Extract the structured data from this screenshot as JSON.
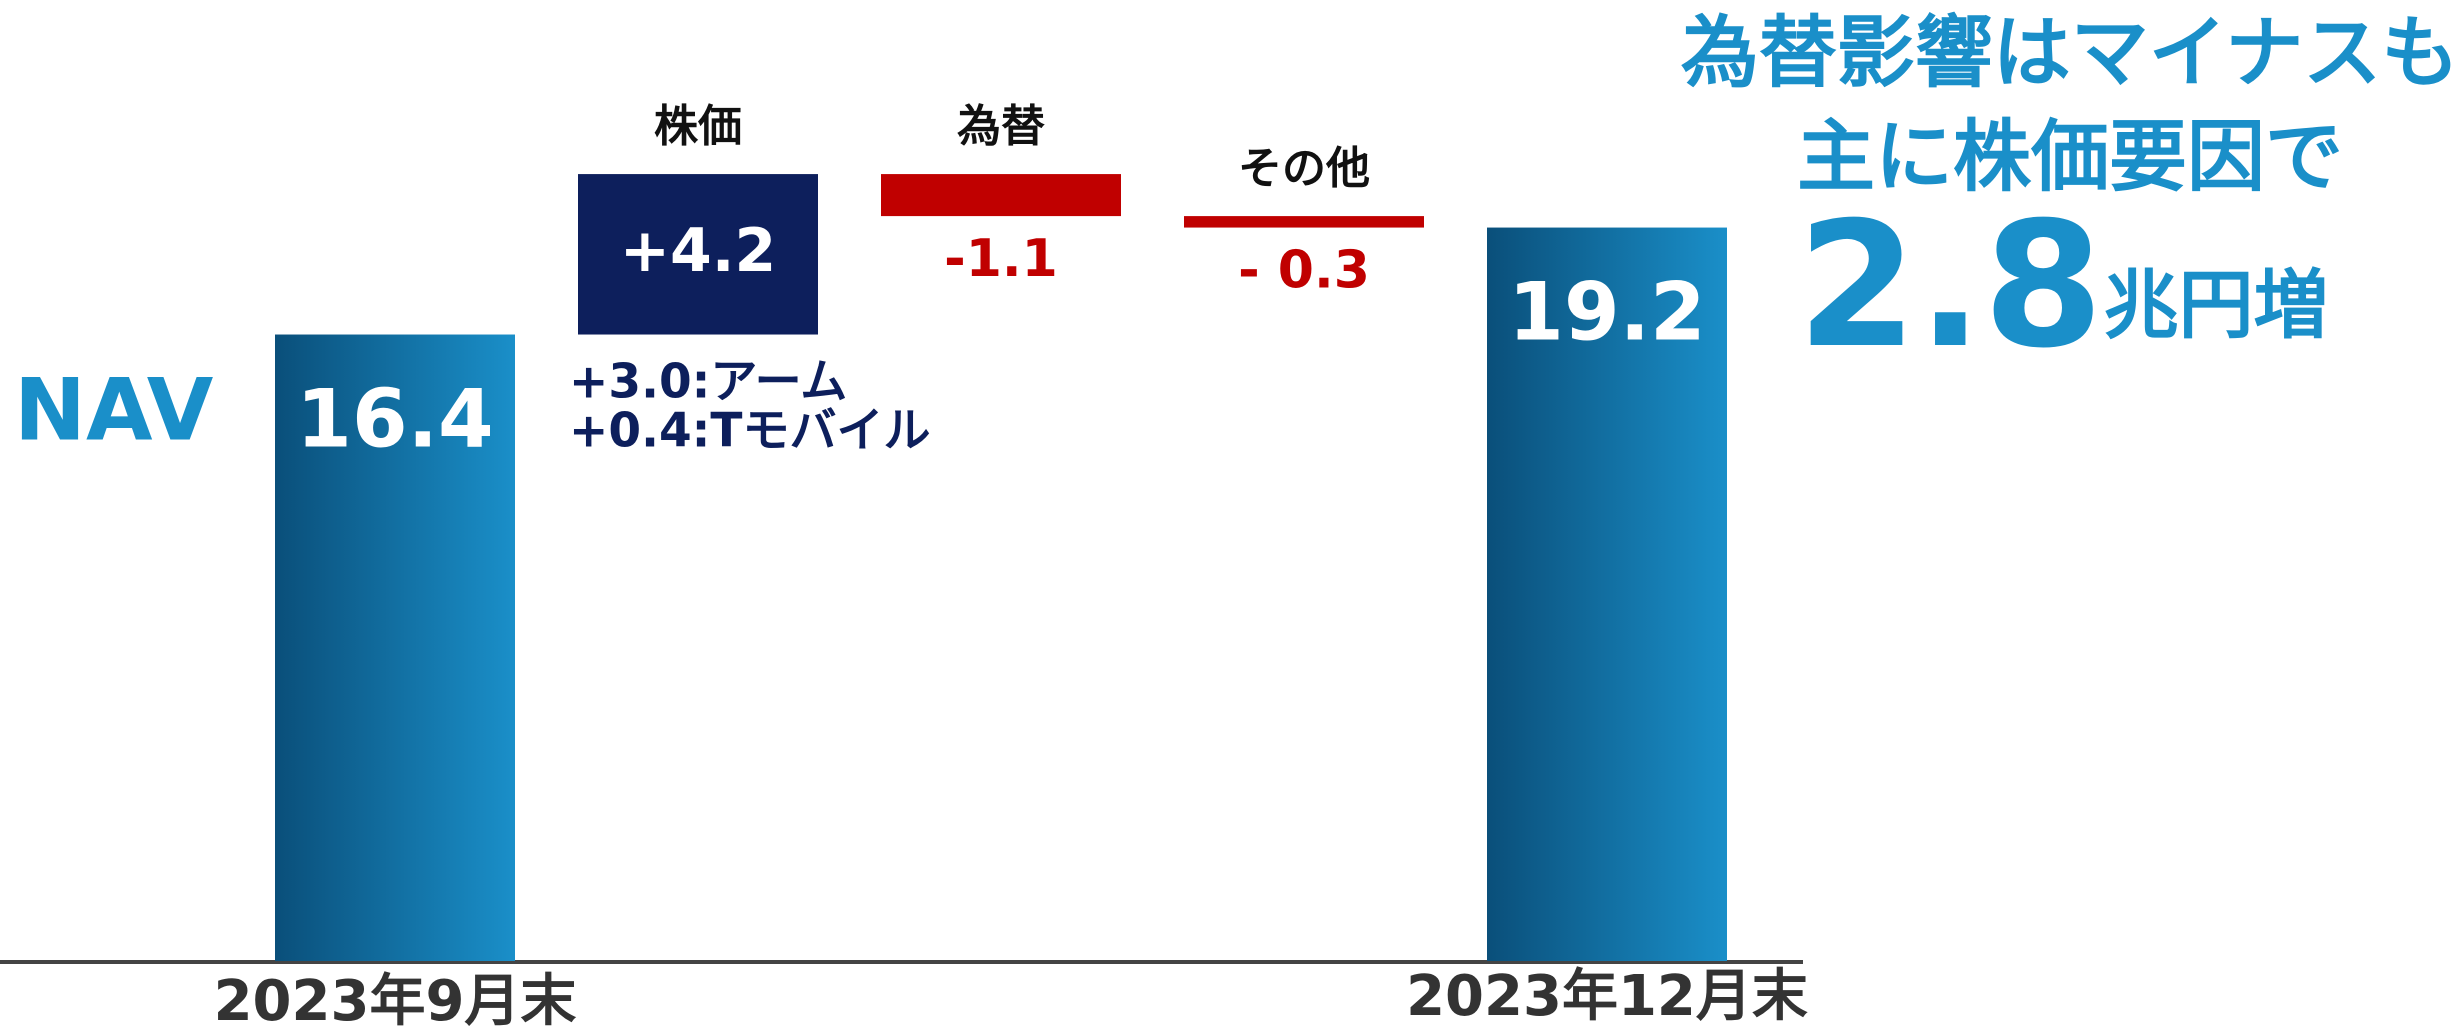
{
  "chart_data": {
    "type": "waterfall",
    "title": "為替影響はマイナスも",
    "subtitle": "主に株価要因で",
    "headline_value": "2.8",
    "headline_unit": "兆円増",
    "y_label": "NAV",
    "categories": [
      "2023年9月末",
      "株価",
      "為替",
      "その他",
      "2023年12月末"
    ],
    "values": [
      16.4,
      4.2,
      -1.1,
      -0.3,
      19.2
    ],
    "value_labels": [
      "16.4",
      "+4.2",
      "-1.1",
      "- 0.3",
      "19.2"
    ],
    "annotations": [
      "+3.0:アーム",
      "+0.4:Tモバイル"
    ],
    "total_color": "#1a8fc9",
    "increase_color": "#0d1f5c",
    "decrease_color": "#c00000"
  }
}
